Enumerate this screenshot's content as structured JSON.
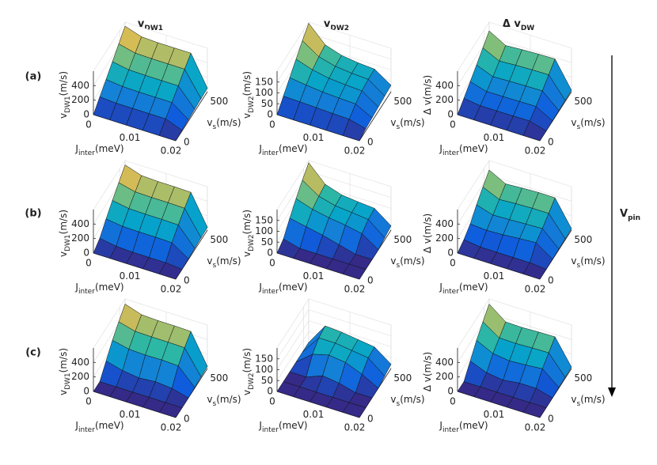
{
  "column_titles": [
    [
      "v",
      "DW1"
    ],
    [
      "v",
      "DW2"
    ],
    [
      "Δ v",
      "DW"
    ]
  ],
  "row_labels": [
    "(a)",
    "(b)",
    "(c)"
  ],
  "arrow_label": [
    "V",
    "pin"
  ],
  "chart_data": [
    {
      "type": "surface",
      "x": [
        0,
        0.004,
        0.008,
        0.012,
        0.016,
        0.02
      ],
      "y": [
        0,
        120,
        240,
        360,
        480,
        600
      ],
      "xlim": [
        0,
        0.02
      ],
      "ylim": [
        0,
        600
      ],
      "zlim": [
        0,
        600
      ],
      "xticks": [
        0,
        0.01,
        0.02
      ],
      "yticks": [
        0,
        500
      ],
      "zticks": [
        0,
        200,
        400
      ],
      "xlabel": [
        "J",
        "inter",
        "(meV)"
      ],
      "ylabel": [
        "v",
        "s",
        "(m/s)"
      ],
      "zlabel": [
        "v",
        "DW1",
        "(m/s)"
      ],
      "z": [
        [
          0,
          0,
          0,
          0,
          0,
          0
        ],
        [
          110,
          95,
          95,
          95,
          95,
          10
        ],
        [
          215,
          190,
          185,
          185,
          185,
          20
        ],
        [
          325,
          285,
          280,
          280,
          280,
          30
        ],
        [
          435,
          380,
          375,
          375,
          375,
          40
        ],
        [
          545,
          470,
          460,
          460,
          460,
          50
        ]
      ]
    },
    {
      "type": "surface",
      "x": [
        0,
        0.004,
        0.008,
        0.012,
        0.016,
        0.02
      ],
      "y": [
        0,
        120,
        240,
        360,
        480,
        600
      ],
      "xlim": [
        0,
        0.02
      ],
      "ylim": [
        0,
        600
      ],
      "zlim": [
        0,
        200
      ],
      "xticks": [
        0,
        0.01,
        0.02
      ],
      "yticks": [
        0,
        500
      ],
      "zticks": [
        0,
        50,
        100,
        150
      ],
      "xlabel": [
        "J",
        "inter",
        "(meV)"
      ],
      "ylabel": [
        "v",
        "s",
        "(m/s)"
      ],
      "zlabel": [
        "v",
        "DW2",
        "(m/s)"
      ],
      "z": [
        [
          0,
          0,
          0,
          0,
          0,
          0
        ],
        [
          40,
          38,
          35,
          32,
          30,
          10
        ],
        [
          80,
          70,
          62,
          58,
          55,
          15
        ],
        [
          120,
          95,
          80,
          74,
          70,
          20
        ],
        [
          160,
          110,
          90,
          82,
          78,
          25
        ],
        [
          195,
          120,
          95,
          85,
          80,
          30
        ]
      ]
    },
    {
      "type": "surface",
      "x": [
        0,
        0.004,
        0.008,
        0.012,
        0.016,
        0.02
      ],
      "y": [
        0,
        120,
        240,
        360,
        480,
        600
      ],
      "xlim": [
        0,
        0.02
      ],
      "ylim": [
        0,
        600
      ],
      "zlim": [
        0,
        600
      ],
      "xticks": [
        0,
        0.01,
        0.02
      ],
      "yticks": [
        0,
        500
      ],
      "zticks": [
        0,
        200,
        400
      ],
      "xlabel": [
        "J",
        "inter",
        "(meV)"
      ],
      "ylabel": [
        "v",
        "s",
        "(m/s)"
      ],
      "zlabel": [
        "Δ v",
        "",
        "(m/s)"
      ],
      "z": [
        [
          0,
          0,
          0,
          0,
          0,
          0
        ],
        [
          90,
          60,
          60,
          62,
          65,
          0
        ],
        [
          185,
          120,
          123,
          127,
          130,
          5
        ],
        [
          280,
          190,
          200,
          206,
          210,
          10
        ],
        [
          380,
          270,
          285,
          293,
          297,
          15
        ],
        [
          480,
          350,
          365,
          375,
          380,
          20
        ]
      ]
    },
    {
      "type": "surface",
      "x": [
        0,
        0.004,
        0.008,
        0.012,
        0.016,
        0.02
      ],
      "y": [
        0,
        120,
        240,
        360,
        480,
        600
      ],
      "xlim": [
        0,
        0.02
      ],
      "ylim": [
        0,
        600
      ],
      "zlim": [
        0,
        600
      ],
      "xticks": [
        0,
        0.01,
        0.02
      ],
      "yticks": [
        0,
        500
      ],
      "zticks": [
        0,
        200,
        400
      ],
      "xlabel": [
        "J",
        "inter",
        "(meV)"
      ],
      "ylabel": [
        "v",
        "s",
        "(m/s)"
      ],
      "zlabel": [
        "v",
        "DW1",
        "(m/s)"
      ],
      "z": [
        [
          0,
          0,
          0,
          0,
          0,
          0
        ],
        [
          70,
          30,
          20,
          20,
          20,
          0
        ],
        [
          200,
          170,
          165,
          165,
          160,
          10
        ],
        [
          320,
          280,
          275,
          275,
          270,
          20
        ],
        [
          430,
          375,
          370,
          370,
          365,
          30
        ],
        [
          540,
          465,
          455,
          455,
          450,
          40
        ]
      ]
    },
    {
      "type": "surface",
      "x": [
        0,
        0.004,
        0.008,
        0.012,
        0.016,
        0.02
      ],
      "y": [
        0,
        120,
        240,
        360,
        480,
        600
      ],
      "xlim": [
        0,
        0.02
      ],
      "ylim": [
        0,
        600
      ],
      "zlim": [
        0,
        200
      ],
      "xticks": [
        0,
        0.01,
        0.02
      ],
      "yticks": [
        0,
        500
      ],
      "zticks": [
        0,
        50,
        100,
        150
      ],
      "xlabel": [
        "J",
        "inter",
        "(meV)"
      ],
      "ylabel": [
        "v",
        "s",
        "(m/s)"
      ],
      "zlabel": [
        "v",
        "DW2",
        "(m/s)"
      ],
      "z": [
        [
          0,
          0,
          0,
          0,
          0,
          0
        ],
        [
          20,
          0,
          0,
          0,
          0,
          0
        ],
        [
          70,
          55,
          40,
          20,
          0,
          0
        ],
        [
          115,
          90,
          75,
          65,
          50,
          0
        ],
        [
          155,
          105,
          85,
          78,
          70,
          10
        ],
        [
          190,
          115,
          90,
          82,
          76,
          20
        ]
      ]
    },
    {
      "type": "surface",
      "x": [
        0,
        0.004,
        0.008,
        0.012,
        0.016,
        0.02
      ],
      "y": [
        0,
        120,
        240,
        360,
        480,
        600
      ],
      "xlim": [
        0,
        0.02
      ],
      "ylim": [
        0,
        600
      ],
      "zlim": [
        0,
        600
      ],
      "xticks": [
        0,
        0.01,
        0.02
      ],
      "yticks": [
        0,
        500
      ],
      "zticks": [
        0,
        200,
        400
      ],
      "xlabel": [
        "J",
        "inter",
        "(meV)"
      ],
      "ylabel": [
        "v",
        "s",
        "(m/s)"
      ],
      "zlabel": [
        "Δ v",
        "",
        "(m/s)"
      ],
      "z": [
        [
          0,
          0,
          0,
          0,
          0,
          0
        ],
        [
          50,
          20,
          20,
          20,
          20,
          0
        ],
        [
          130,
          115,
          125,
          145,
          160,
          5
        ],
        [
          260,
          190,
          200,
          210,
          220,
          10
        ],
        [
          370,
          270,
          285,
          293,
          295,
          15
        ],
        [
          470,
          350,
          365,
          375,
          374,
          20
        ]
      ]
    },
    {
      "type": "surface",
      "x": [
        0,
        0.004,
        0.008,
        0.012,
        0.016,
        0.02
      ],
      "y": [
        0,
        120,
        240,
        360,
        480,
        600
      ],
      "xlim": [
        0,
        0.02
      ],
      "ylim": [
        0,
        600
      ],
      "zlim": [
        0,
        600
      ],
      "xticks": [
        0,
        0.01,
        0.02
      ],
      "yticks": [
        0,
        500
      ],
      "zticks": [
        0,
        200,
        400
      ],
      "xlabel": [
        "J",
        "inter",
        "(meV)"
      ],
      "ylabel": [
        "v",
        "s",
        "(m/s)"
      ],
      "zlabel": [
        "v",
        "DW1",
        "(m/s)"
      ],
      "z": [
        [
          0,
          0,
          0,
          0,
          0,
          0
        ],
        [
          0,
          0,
          0,
          0,
          0,
          0
        ],
        [
          150,
          90,
          60,
          80,
          60,
          0
        ],
        [
          300,
          250,
          240,
          245,
          235,
          10
        ],
        [
          420,
          360,
          355,
          355,
          350,
          20
        ],
        [
          530,
          455,
          445,
          445,
          440,
          30
        ]
      ]
    },
    {
      "type": "surface",
      "x": [
        0,
        0.004,
        0.008,
        0.012,
        0.016,
        0.02
      ],
      "y": [
        0,
        120,
        240,
        360,
        480,
        600
      ],
      "xlim": [
        0,
        0.02
      ],
      "ylim": [
        0,
        600
      ],
      "zlim": [
        0,
        200
      ],
      "xticks": [
        0,
        0.01,
        0.02
      ],
      "yticks": [
        0,
        500
      ],
      "zticks": [
        0,
        50,
        100,
        150
      ],
      "xlabel": [
        "J",
        "inter",
        "(meV)"
      ],
      "ylabel": [
        "v",
        "s",
        "(m/s)"
      ],
      "zlabel": [
        "v",
        "DW2",
        "(m/s)"
      ],
      "z": [
        [
          0,
          0,
          0,
          0,
          0,
          0
        ],
        [
          0,
          0,
          0,
          0,
          0,
          0
        ],
        [
          0,
          0,
          30,
          20,
          0,
          0
        ],
        [
          0,
          60,
          80,
          70,
          40,
          0
        ],
        [
          0,
          90,
          90,
          80,
          70,
          10
        ],
        [
          0,
          100,
          95,
          85,
          75,
          20
        ]
      ]
    },
    {
      "type": "surface",
      "x": [
        0,
        0.004,
        0.008,
        0.012,
        0.016,
        0.02
      ],
      "y": [
        0,
        120,
        240,
        360,
        480,
        600
      ],
      "xlim": [
        0,
        0.02
      ],
      "ylim": [
        0,
        600
      ],
      "zlim": [
        0,
        600
      ],
      "xticks": [
        0,
        0.01,
        0.02
      ],
      "yticks": [
        0,
        500
      ],
      "zticks": [
        0,
        200,
        400
      ],
      "xlabel": [
        "J",
        "inter",
        "(meV)"
      ],
      "ylabel": [
        "v",
        "s",
        "(m/s)"
      ],
      "zlabel": [
        "Δ v",
        "",
        "(m/s)"
      ],
      "z": [
        [
          0,
          0,
          0,
          0,
          0,
          0
        ],
        [
          0,
          0,
          0,
          0,
          0,
          0
        ],
        [
          150,
          60,
          30,
          60,
          60,
          0
        ],
        [
          300,
          190,
          160,
          175,
          195,
          10
        ],
        [
          420,
          270,
          265,
          275,
          280,
          15
        ],
        [
          530,
          355,
          350,
          360,
          365,
          20
        ]
      ]
    }
  ]
}
